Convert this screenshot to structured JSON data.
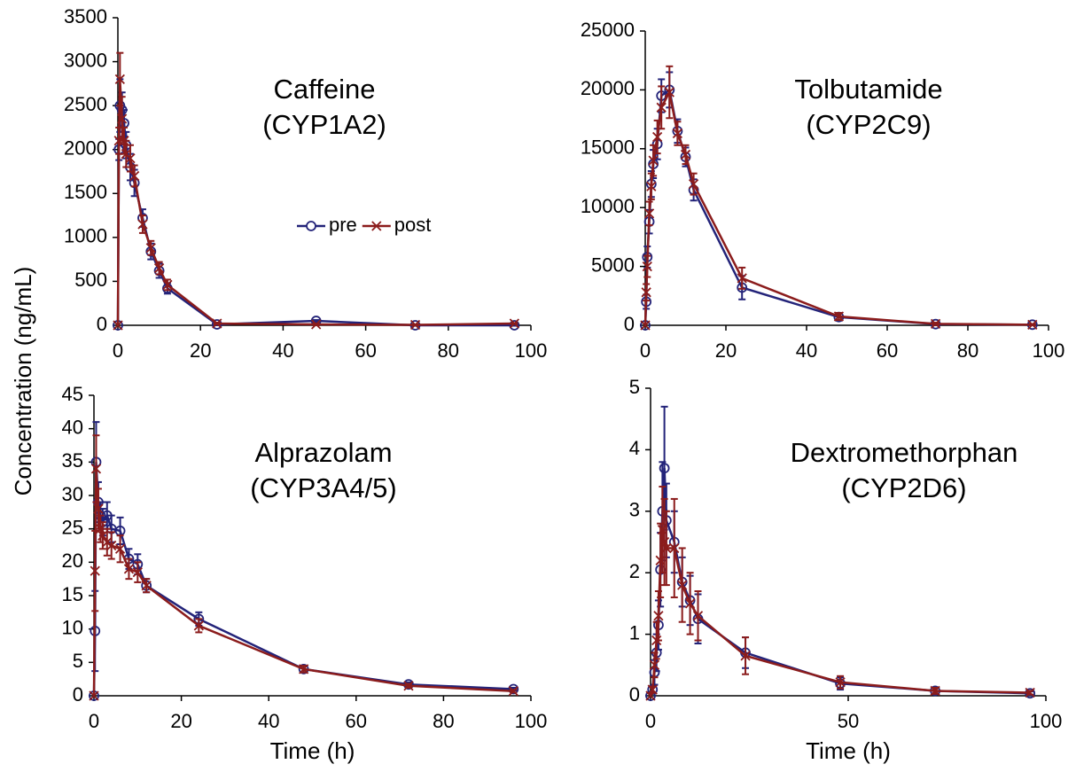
{
  "chart_data": [
    {
      "type": "line",
      "title": "Caffeine",
      "subtitle": "(CYP1A2)",
      "legend": "center-right",
      "ylabel": "Concentration (ng/mL)",
      "x": [
        0,
        0.25,
        0.5,
        1,
        1.5,
        2,
        3,
        4,
        6,
        8,
        10,
        12,
        24,
        48,
        72,
        96
      ],
      "xlim": [
        0,
        100
      ],
      "xticks": [
        0,
        20,
        40,
        60,
        80,
        100
      ],
      "ylim": [
        0,
        3500
      ],
      "yticks": [
        0,
        500,
        1000,
        1500,
        2000,
        2500,
        3000,
        3500
      ],
      "series": [
        {
          "name": "pre",
          "color": "#232379",
          "marker": "circle",
          "values": [
            0,
            2000,
            2500,
            2450,
            2300,
            2050,
            1800,
            1620,
            1220,
            840,
            620,
            420,
            10,
            50,
            0,
            0
          ],
          "errors": [
            0,
            120,
            300,
            200,
            150,
            150,
            150,
            150,
            100,
            90,
            80,
            60,
            10,
            10,
            5,
            5
          ]
        },
        {
          "name": "post",
          "color": "#8b1c1c",
          "marker": "x",
          "values": [
            0,
            2100,
            2800,
            2350,
            2100,
            1950,
            1900,
            1700,
            1150,
            880,
            650,
            460,
            20,
            10,
            5,
            20
          ],
          "errors": [
            0,
            150,
            300,
            250,
            150,
            150,
            150,
            120,
            100,
            80,
            70,
            60,
            10,
            10,
            5,
            5
          ]
        }
      ]
    },
    {
      "type": "line",
      "title": "Tolbutamide",
      "subtitle": "(CYP2C9)",
      "x": [
        0,
        0.25,
        0.5,
        1,
        1.5,
        2,
        3,
        4,
        6,
        8,
        10,
        12,
        24,
        48,
        72,
        96
      ],
      "xlim": [
        0,
        100
      ],
      "xticks": [
        0,
        20,
        40,
        60,
        80,
        100
      ],
      "ylim": [
        0,
        25000
      ],
      "yticks": [
        0,
        5000,
        10000,
        15000,
        20000,
        25000
      ],
      "series": [
        {
          "name": "pre",
          "color": "#232379",
          "marker": "circle",
          "values": [
            0,
            2000,
            5800,
            8800,
            12000,
            13700,
            15400,
            19500,
            20000,
            16500,
            14300,
            11500,
            3200,
            700,
            100,
            50
          ],
          "errors": [
            0,
            600,
            900,
            1000,
            1100,
            1200,
            1300,
            1400,
            1500,
            1000,
            800,
            900,
            1000,
            300,
            100,
            50
          ]
        },
        {
          "name": "post",
          "color": "#8b1c1c",
          "marker": "x",
          "values": [
            0,
            2800,
            5000,
            9500,
            11800,
            14000,
            16000,
            18500,
            19800,
            16300,
            14500,
            12000,
            4000,
            750,
            120,
            50
          ],
          "errors": [
            0,
            700,
            900,
            1000,
            1100,
            1300,
            1400,
            1800,
            2200,
            1000,
            800,
            900,
            900,
            300,
            100,
            50
          ]
        }
      ]
    },
    {
      "type": "line",
      "title": "Alprazolam",
      "subtitle": "(CYP3A4/5)",
      "xlabel": "Time (h)",
      "x": [
        0,
        0.25,
        0.5,
        1,
        1.5,
        2,
        3,
        4,
        6,
        8,
        10,
        12,
        24,
        48,
        72,
        96
      ],
      "xlim": [
        0,
        100
      ],
      "xticks": [
        0,
        20,
        40,
        60,
        80,
        100
      ],
      "ylim": [
        0,
        45
      ],
      "yticks": [
        0,
        5,
        10,
        15,
        20,
        25,
        30,
        35,
        40,
        45
      ],
      "series": [
        {
          "name": "pre",
          "color": "#232379",
          "marker": "circle",
          "values": [
            0,
            9.7,
            35,
            29,
            27,
            26,
            27,
            25,
            24.7,
            20.5,
            19.7,
            16.5,
            11.5,
            4,
            1.7,
            1
          ],
          "errors": [
            0,
            6,
            6,
            3,
            2,
            2,
            2,
            2,
            2,
            1.5,
            1.5,
            1,
            1,
            0.5,
            0.3,
            0.2
          ]
        },
        {
          "name": "post",
          "color": "#8b1c1c",
          "marker": "x",
          "values": [
            0,
            18.7,
            34,
            28,
            25,
            24,
            23,
            22.5,
            22,
            19,
            18.5,
            16.5,
            10.5,
            4,
            1.5,
            0.7
          ],
          "errors": [
            0,
            6,
            5,
            3,
            2,
            2,
            2,
            2,
            2,
            1.5,
            1.5,
            1,
            1,
            0.5,
            0.3,
            0.2
          ]
        }
      ]
    },
    {
      "type": "line",
      "title": "Dextromethorphan",
      "subtitle": "(CYP2D6)",
      "xlabel": "Time (h)",
      "x": [
        0,
        0.5,
        1,
        1.5,
        2,
        2.5,
        3,
        3.5,
        4,
        6,
        8,
        10,
        12,
        24,
        48,
        72,
        96
      ],
      "xlim": [
        0,
        100
      ],
      "xticks": [
        0,
        50,
        100
      ],
      "ylim": [
        0,
        5
      ],
      "yticks": [
        0,
        1,
        2,
        3,
        4,
        5
      ],
      "series": [
        {
          "name": "pre",
          "color": "#232379",
          "marker": "circle",
          "values": [
            0,
            0.1,
            0.38,
            0.7,
            1.15,
            2.05,
            3.0,
            3.7,
            2.85,
            2.5,
            1.85,
            1.55,
            1.25,
            0.7,
            0.2,
            0.08,
            0.04
          ],
          "errors": [
            0,
            0.05,
            0.2,
            0.3,
            0.4,
            0.6,
            0.8,
            1.0,
            0.6,
            0.5,
            0.4,
            0.4,
            0.4,
            0.25,
            0.1,
            0.05,
            0.03
          ]
        },
        {
          "name": "post",
          "color": "#8b1c1c",
          "marker": "x",
          "values": [
            0,
            0.1,
            0.5,
            0.9,
            1.3,
            2.2,
            2.7,
            2.5,
            2.4,
            2.4,
            1.8,
            1.5,
            1.3,
            0.65,
            0.22,
            0.08,
            0.05
          ],
          "errors": [
            0,
            0.05,
            0.2,
            0.3,
            0.4,
            0.6,
            0.7,
            0.7,
            0.6,
            0.8,
            0.6,
            0.5,
            0.4,
            0.3,
            0.1,
            0.05,
            0.03
          ]
        }
      ]
    }
  ]
}
